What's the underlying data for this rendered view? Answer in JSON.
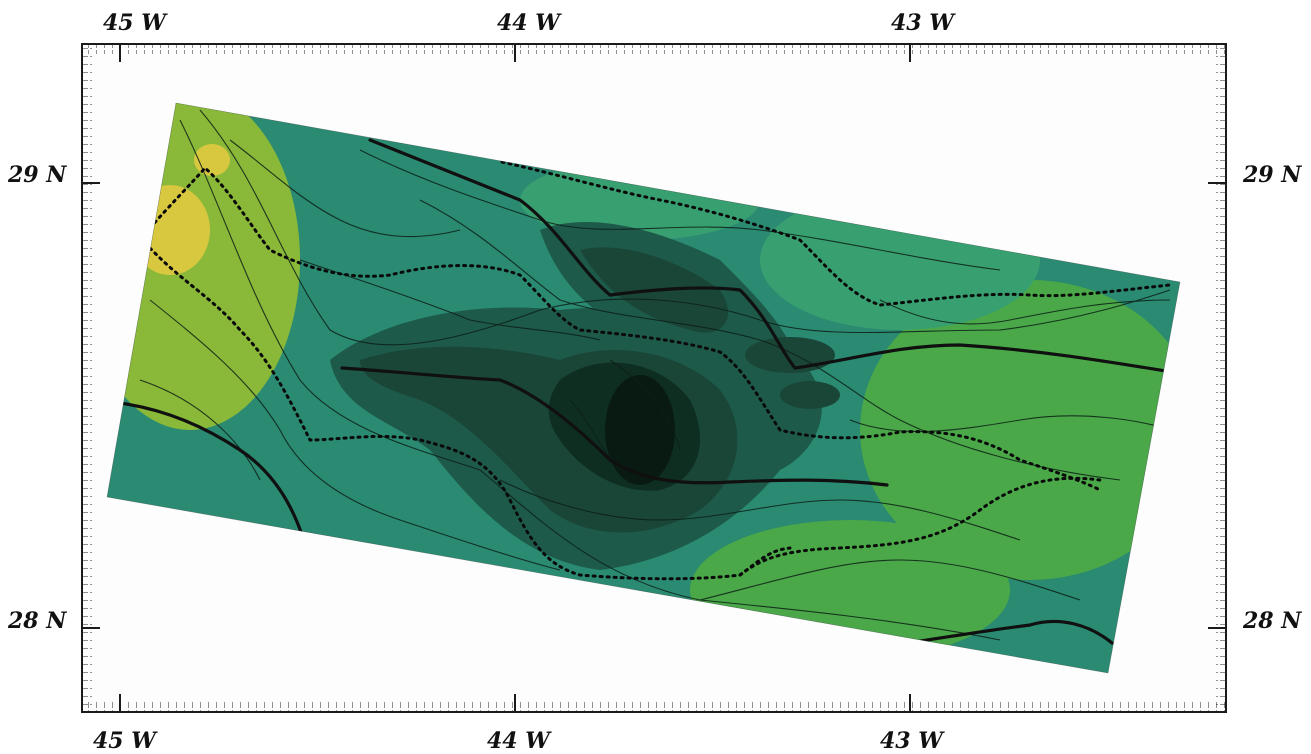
{
  "map": {
    "top_longitude_labels": [
      "45 W",
      "44 W",
      "43 W"
    ],
    "bottom_longitude_labels": [
      "45 W",
      "44 W",
      "43 W"
    ],
    "left_latitude_labels": [
      "29 N",
      "28 N"
    ],
    "right_latitude_labels": [
      "29 N",
      "28 N"
    ],
    "colors": {
      "frame": "#1a1a1a",
      "deep": "#0f2e22",
      "mid_deep": "#1d5a4a",
      "mid": "#2a8a72",
      "shallow": "#38a070",
      "shallower": "#4aa848",
      "high": "#8ab838",
      "peak": "#d8c840",
      "fault_line": "#101010"
    }
  }
}
